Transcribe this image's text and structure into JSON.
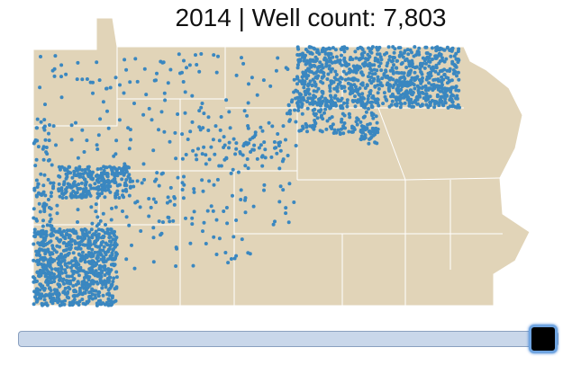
{
  "title": "2014 | Well count: 7,803"
}
